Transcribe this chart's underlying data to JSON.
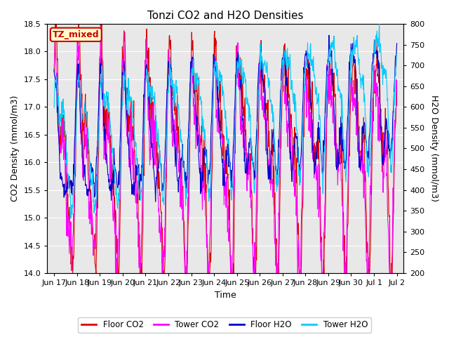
{
  "title": "Tonzi CO2 and H2O Densities",
  "xlabel": "Time",
  "ylabel_left": "CO2 Density (mmol/m3)",
  "ylabel_right": "H2O Density (mmol/m3)",
  "ylim_left": [
    14.0,
    18.5
  ],
  "ylim_right": [
    200,
    800
  ],
  "annotation_text": "TZ_mixed",
  "annotation_color": "#cc0000",
  "annotation_bg": "#ffffcc",
  "line_colors": {
    "floor_co2": "#dd0000",
    "tower_co2": "#ff00ff",
    "floor_h2o": "#0000cc",
    "tower_h2o": "#00ccff"
  },
  "legend_labels": [
    "Floor CO2",
    "Tower CO2",
    "Floor H2O",
    "Tower H2O"
  ],
  "x_tick_labels": [
    "Jun 17",
    "Jun 18",
    "Jun 19",
    "Jun 20",
    "Jun 21",
    "Jun 22",
    "Jun 23",
    "Jun 24",
    "Jun 25",
    "Jun 26",
    "Jun 27",
    "Jun 28",
    "Jun 29",
    "Jun 30",
    "Jul 1",
    "Jul 2"
  ],
  "fig_bg_color": "#ffffff",
  "plot_bg_color": "#e8e8e8",
  "grid_color": "#ffffff",
  "n_points": 900,
  "seed": 42
}
